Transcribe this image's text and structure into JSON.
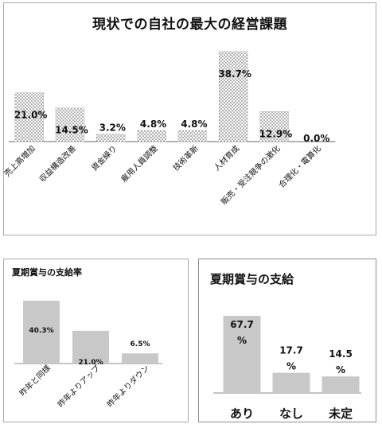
{
  "chart_data": [
    {
      "type": "bar",
      "title": "現状での自社の最大の経営課題",
      "categories": [
        "売上高増加",
        "収益構造改善",
        "資金繰り",
        "雇用人員調整",
        "技術革新",
        "人材育成",
        "販売・受注競争の激化",
        "合理化・電算化"
      ],
      "values": [
        21.0,
        14.5,
        3.2,
        4.8,
        4.8,
        38.7,
        12.9,
        0.0
      ],
      "labels": [
        "21.0%",
        "14.5%",
        "3.2%",
        "4.8%",
        "4.8%",
        "38.7%",
        "12.9%",
        "0.0%"
      ],
      "ylim": [
        0,
        40
      ],
      "fill": "dotted",
      "grid": false,
      "legend": "none"
    },
    {
      "type": "bar",
      "title": "夏期賞与の支給率",
      "categories": [
        "昨年と同様",
        "昨年よりアップ",
        "昨年よりダウン"
      ],
      "values": [
        40.3,
        21.0,
        6.5
      ],
      "labels": [
        "40.3%",
        "21.0%",
        "6.5%"
      ],
      "ylim": [
        0,
        42
      ],
      "color": "#c8c8c8",
      "grid": false,
      "legend": "none"
    },
    {
      "type": "bar",
      "title": "夏期賞与の支給",
      "categories": [
        "あり",
        "なし",
        "未定"
      ],
      "values": [
        67.7,
        17.7,
        14.5
      ],
      "labels": [
        [
          "67.7",
          "%"
        ],
        [
          "17.7",
          "%"
        ],
        [
          "14.5",
          "%"
        ]
      ],
      "ylim": [
        0,
        70
      ],
      "color": "#c8c8c8",
      "grid": false,
      "legend": "none"
    }
  ]
}
